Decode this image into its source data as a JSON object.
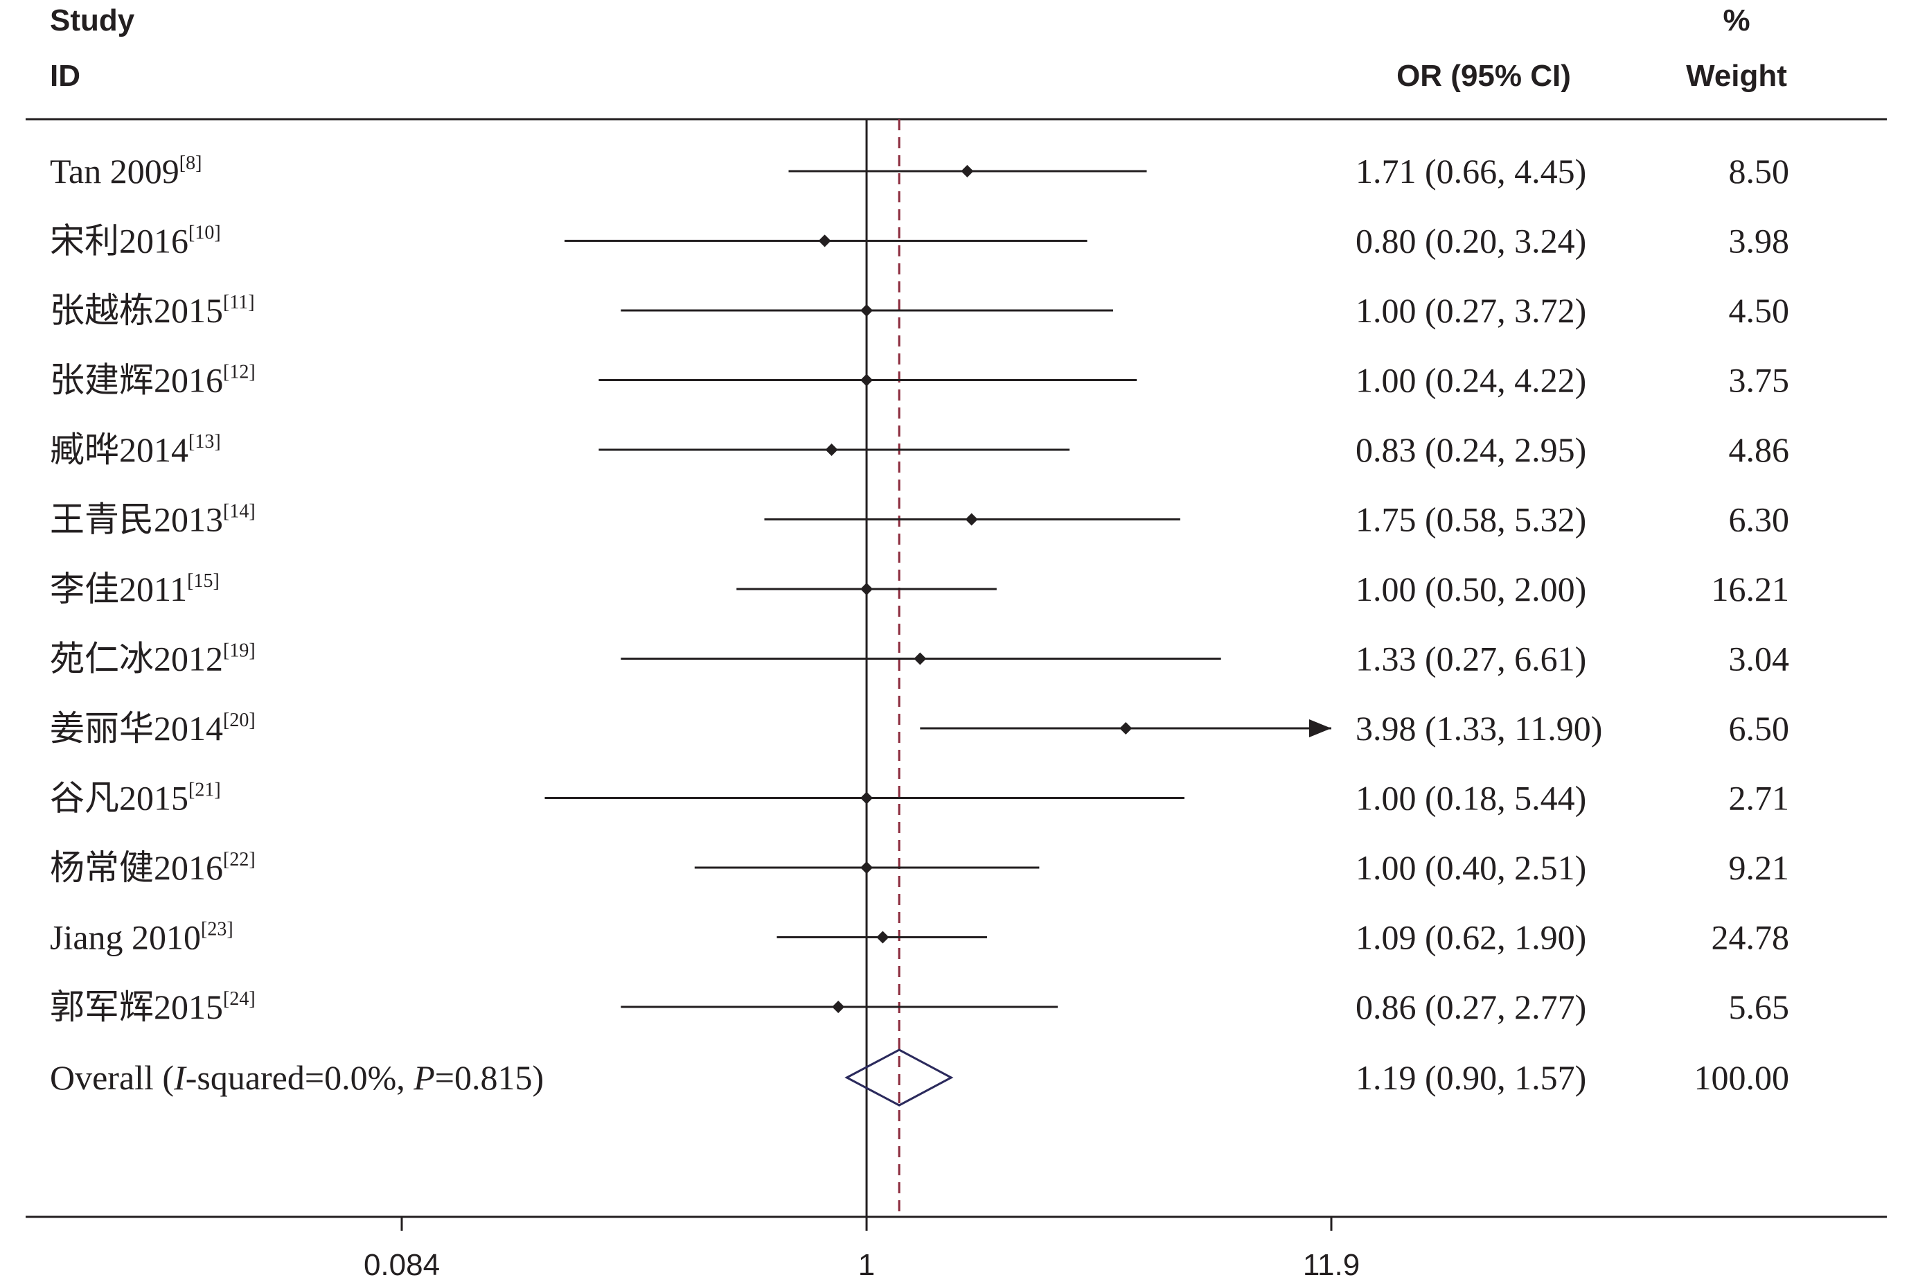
{
  "headers": {
    "study_line1": "Study",
    "study_line2": "ID",
    "or": "OR (95% CI)",
    "weight_line1": "%",
    "weight_line2": "Weight"
  },
  "overall_label": {
    "prefix": "Overall  (",
    "i_italic": "I",
    "mid": "-squared=0.0%, ",
    "p_italic": "P",
    "suffix": "=0.815)"
  },
  "chart_data": {
    "type": "forest",
    "x_scale": "log",
    "xlim": [
      0.084,
      11.9
    ],
    "x_ticks": [
      "0.084",
      "1",
      "11.9"
    ],
    "null_line": 1,
    "studies": [
      {
        "name": "Tan 2009",
        "ref": "[8]",
        "or": 1.71,
        "lo": 0.66,
        "hi": 4.45,
        "ci_text": "1.71 (0.66, 4.45)",
        "weight": "8.50"
      },
      {
        "name": "宋利2016",
        "ref": "[10]",
        "or": 0.8,
        "lo": 0.2,
        "hi": 3.24,
        "ci_text": "0.80 (0.20, 3.24)",
        "weight": "3.98"
      },
      {
        "name": "张越栋2015",
        "ref": "[11]",
        "or": 1.0,
        "lo": 0.27,
        "hi": 3.72,
        "ci_text": "1.00 (0.27, 3.72)",
        "weight": "4.50"
      },
      {
        "name": "张建辉2016",
        "ref": "[12]",
        "or": 1.0,
        "lo": 0.24,
        "hi": 4.22,
        "ci_text": "1.00 (0.24, 4.22)",
        "weight": "3.75"
      },
      {
        "name": "臧晔2014",
        "ref": "[13]",
        "or": 0.83,
        "lo": 0.24,
        "hi": 2.95,
        "ci_text": "0.83 (0.24, 2.95)",
        "weight": "4.86"
      },
      {
        "name": "王青民2013",
        "ref": "[14]",
        "or": 1.75,
        "lo": 0.58,
        "hi": 5.32,
        "ci_text": "1.75 (0.58, 5.32)",
        "weight": "6.30"
      },
      {
        "name": "李佳2011",
        "ref": "[15]",
        "or": 1.0,
        "lo": 0.5,
        "hi": 2.0,
        "ci_text": "1.00 (0.50, 2.00)",
        "weight": "16.21"
      },
      {
        "name": "苑仁冰2012",
        "ref": "[19]",
        "or": 1.33,
        "lo": 0.27,
        "hi": 6.61,
        "ci_text": "1.33 (0.27, 6.61)",
        "weight": "3.04"
      },
      {
        "name": "姜丽华2014",
        "ref": "[20]",
        "or": 3.98,
        "lo": 1.33,
        "hi": 11.9,
        "ci_text": "3.98 (1.33, 11.90)",
        "weight": "6.50",
        "arrow_right": true
      },
      {
        "name": "谷凡2015",
        "ref": "[21]",
        "or": 1.0,
        "lo": 0.18,
        "hi": 5.44,
        "ci_text": "1.00 (0.18, 5.44)",
        "weight": "2.71"
      },
      {
        "name": "杨常健2016",
        "ref": "[22]",
        "or": 1.0,
        "lo": 0.4,
        "hi": 2.51,
        "ci_text": "1.00 (0.40, 2.51)",
        "weight": "9.21"
      },
      {
        "name": "Jiang 2010",
        "ref": "[23]",
        "or": 1.09,
        "lo": 0.62,
        "hi": 1.9,
        "ci_text": "1.09 (0.62, 1.90)",
        "weight": "24.78"
      },
      {
        "name": "郭军辉2015",
        "ref": "[24]",
        "or": 0.86,
        "lo": 0.27,
        "hi": 2.77,
        "ci_text": "0.86 (0.27, 2.77)",
        "weight": "5.65"
      }
    ],
    "overall": {
      "or": 1.19,
      "lo": 0.9,
      "hi": 1.57,
      "ci_text": "1.19 (0.90, 1.57)",
      "weight": "100.00"
    }
  },
  "colors": {
    "text": "#231f20",
    "line": "#231f20",
    "overall_dashed": "#8b2a3c",
    "diamond": "#2b2a5c"
  }
}
